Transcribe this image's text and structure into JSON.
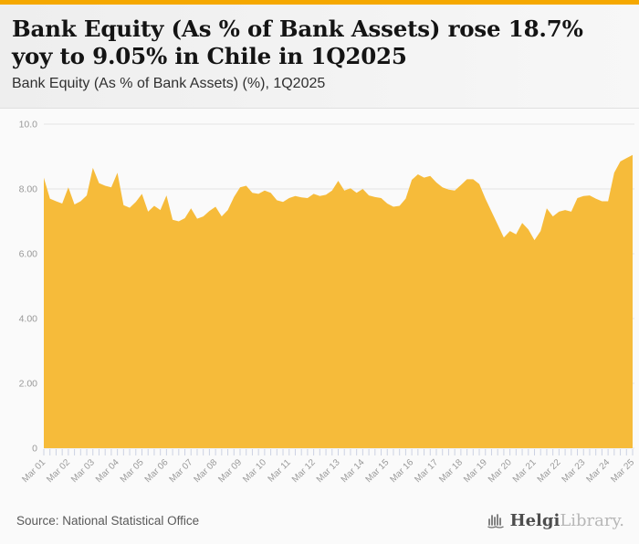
{
  "accent_color": "#f5a800",
  "header": {
    "title": "Bank Equity (As % of Bank Assets) rose 18.7% yoy to 9.05% in Chile in 1Q2025",
    "subtitle": "Bank Equity (As % of Bank Assets) (%), 1Q2025"
  },
  "chart_data": {
    "type": "area",
    "title": "Bank Equity (As % of Bank Assets) (%), 1Q2025",
    "country": "Chile",
    "frequency": "quarterly",
    "x_start": "Mar 2001",
    "x_end": "Mar 2025",
    "x_tick_labels": [
      "Mar 01",
      "Mar 02",
      "Mar 03",
      "Mar 04",
      "Mar 05",
      "Mar 06",
      "Mar 07",
      "Mar 08",
      "Mar 09",
      "Mar 10",
      "Mar 11",
      "Mar 12",
      "Mar 13",
      "Mar 14",
      "Mar 15",
      "Mar 16",
      "Mar 17",
      "Mar 18",
      "Mar 19",
      "Mar 20",
      "Mar 21",
      "Mar 22",
      "Mar 23",
      "Mar 24",
      "Mar 25"
    ],
    "values": [
      8.35,
      7.7,
      7.62,
      7.55,
      8.05,
      7.52,
      7.62,
      7.8,
      8.65,
      8.18,
      8.1,
      8.05,
      8.5,
      7.5,
      7.42,
      7.6,
      7.85,
      7.3,
      7.48,
      7.35,
      7.8,
      7.05,
      7.0,
      7.1,
      7.4,
      7.08,
      7.15,
      7.32,
      7.45,
      7.15,
      7.35,
      7.75,
      8.05,
      8.1,
      7.88,
      7.85,
      7.95,
      7.88,
      7.65,
      7.6,
      7.72,
      7.78,
      7.74,
      7.72,
      7.85,
      7.78,
      7.82,
      7.95,
      8.25,
      7.95,
      8.02,
      7.88,
      8.0,
      7.8,
      7.75,
      7.72,
      7.55,
      7.45,
      7.48,
      7.7,
      8.28,
      8.45,
      8.35,
      8.4,
      8.2,
      8.05,
      7.98,
      7.95,
      8.12,
      8.3,
      8.3,
      8.15,
      7.7,
      7.3,
      6.9,
      6.5,
      6.7,
      6.6,
      6.95,
      6.75,
      6.42,
      6.7,
      7.4,
      7.15,
      7.3,
      7.35,
      7.3,
      7.72,
      7.78,
      7.8,
      7.7,
      7.62,
      7.62,
      8.5,
      8.85,
      8.95,
      9.05
    ],
    "ylim": [
      0,
      10
    ],
    "yticks": [
      {
        "v": 0,
        "label": "0"
      },
      {
        "v": 2,
        "label": "2.00"
      },
      {
        "v": 4,
        "label": "4.00"
      },
      {
        "v": 6,
        "label": "6.00"
      },
      {
        "v": 8,
        "label": "8.00"
      },
      {
        "v": 10,
        "label": "10.0"
      }
    ],
    "grid": true,
    "legend": "none",
    "fill_color": "#f6bb3a",
    "grid_color": "#e4e4e4",
    "tick_color": "#ccd2e3",
    "axis_label_color": "#999999",
    "latest": {
      "period": "1Q2025",
      "value": 9.05,
      "yoy_change_pct": 18.7
    }
  },
  "footer": {
    "source": "Source: National Statistical Office",
    "logo": {
      "icon": "building-bars-icon",
      "name_primary": "Helgi",
      "name_secondary": "Library."
    }
  }
}
